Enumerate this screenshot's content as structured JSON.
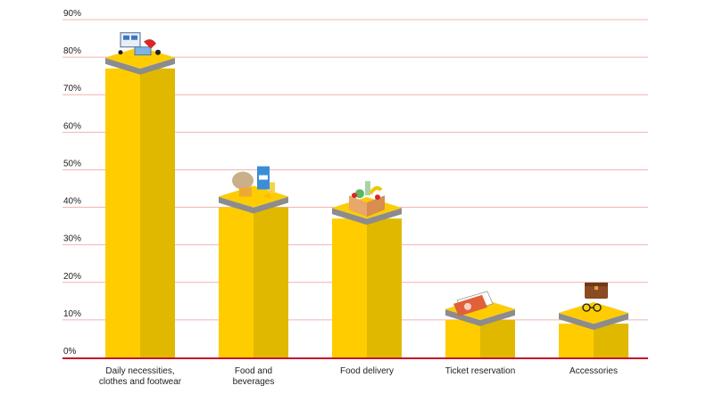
{
  "chart_data": {
    "type": "bar",
    "categories": [
      [
        "Daily necessities,",
        "clothes and footwear"
      ],
      [
        "Food and",
        "beverages"
      ],
      [
        "Food delivery"
      ],
      [
        "Ticket reservation"
      ],
      [
        "Accessories"
      ]
    ],
    "values": [
      77,
      40,
      37,
      10,
      9
    ],
    "icons": [
      "appliances-clothing-icon",
      "grocery-icon",
      "delivery-box-icon",
      "tickets-icon",
      "briefcase-glasses-icon"
    ],
    "ylim": [
      0,
      90
    ],
    "yticks": [
      0,
      10,
      20,
      30,
      40,
      50,
      60,
      70,
      80,
      90
    ],
    "ytick_labels": [
      "0%",
      "10%",
      "20%",
      "30%",
      "40%",
      "50%",
      "60%",
      "70%",
      "80%",
      "90%"
    ],
    "grid": true,
    "colors": {
      "bar_front": "#ffcc00",
      "bar_side": "#e0b800",
      "top_rim": "#8c8c8c",
      "grid": "#f0b4b4",
      "axis": "#c8102e"
    }
  }
}
